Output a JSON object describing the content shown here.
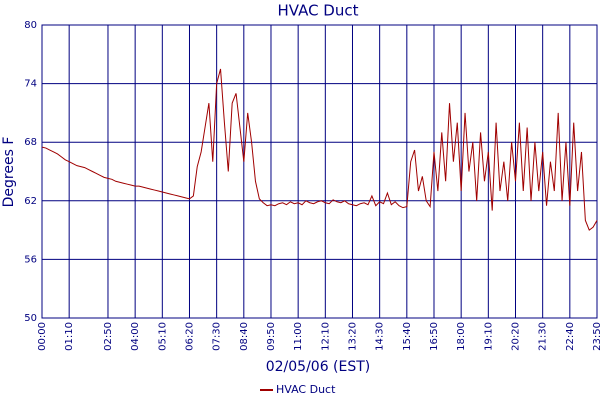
{
  "chart_data": {
    "type": "line",
    "title": "HVAC Duct",
    "xlabel": "02/05/06 (EST)",
    "ylabel": "Degrees F",
    "x": [
      "00:00",
      "00:10",
      "00:20",
      "00:30",
      "00:40",
      "00:50",
      "01:00",
      "01:10",
      "01:20",
      "01:30",
      "01:40",
      "01:50",
      "02:00",
      "02:10",
      "02:20",
      "02:30",
      "02:40",
      "02:50",
      "03:00",
      "03:10",
      "03:20",
      "03:30",
      "03:40",
      "03:50",
      "04:00",
      "04:10",
      "04:20",
      "04:30",
      "04:40",
      "04:50",
      "05:00",
      "05:10",
      "05:20",
      "05:30",
      "05:40",
      "05:50",
      "06:00",
      "06:10",
      "06:20",
      "06:30",
      "06:40",
      "06:50",
      "07:00",
      "07:10",
      "07:20",
      "07:30",
      "07:40",
      "07:50",
      "08:00",
      "08:10",
      "08:20",
      "08:30",
      "08:40",
      "08:50",
      "09:00",
      "09:10",
      "09:20",
      "09:30",
      "09:40",
      "09:50",
      "10:00",
      "10:10",
      "10:20",
      "10:30",
      "10:40",
      "10:50",
      "11:00",
      "11:10",
      "11:20",
      "11:30",
      "11:40",
      "11:50",
      "12:00",
      "12:10",
      "12:20",
      "12:30",
      "12:40",
      "12:50",
      "13:00",
      "13:10",
      "13:20",
      "13:30",
      "13:40",
      "13:50",
      "14:00",
      "14:10",
      "14:20",
      "14:30",
      "14:40",
      "14:50",
      "15:00",
      "15:10",
      "15:20",
      "15:30",
      "15:40",
      "15:50",
      "16:00",
      "16:10",
      "16:20",
      "16:30",
      "16:40",
      "16:50",
      "17:00",
      "17:10",
      "17:20",
      "17:30",
      "17:40",
      "17:50",
      "18:00",
      "18:10",
      "18:20",
      "18:30",
      "18:40",
      "18:50",
      "19:00",
      "19:10",
      "19:20",
      "19:30",
      "19:40",
      "19:50",
      "20:00",
      "20:10",
      "20:20",
      "20:30",
      "20:40",
      "20:50",
      "21:00",
      "21:10",
      "21:20",
      "21:30",
      "21:40",
      "21:50",
      "22:00",
      "22:10",
      "22:20",
      "22:30",
      "22:40",
      "22:50",
      "23:00",
      "23:10",
      "23:20",
      "23:30",
      "23:40",
      "23:50"
    ],
    "series": [
      {
        "name": "HVAC Duct",
        "color": "#a00000",
        "values": [
          67.5,
          67.4,
          67.2,
          67,
          66.8,
          66.5,
          66.2,
          66,
          65.8,
          65.6,
          65.5,
          65.4,
          65.2,
          65,
          64.8,
          64.6,
          64.4,
          64.3,
          64.2,
          64,
          63.9,
          63.8,
          63.7,
          63.6,
          63.5,
          63.5,
          63.4,
          63.3,
          63.2,
          63.1,
          63,
          62.9,
          62.8,
          62.7,
          62.6,
          62.5,
          62.4,
          62.3,
          62.2,
          62.5,
          65.5,
          67,
          69.5,
          72,
          66,
          74,
          75.5,
          70,
          65,
          72,
          73,
          69.5,
          66,
          71,
          68,
          64,
          62.2,
          61.8,
          61.5,
          61.6,
          61.5,
          61.7,
          61.8,
          61.6,
          61.9,
          61.7,
          61.8,
          61.6,
          62,
          61.8,
          61.7,
          61.9,
          62,
          61.8,
          61.7,
          62.1,
          61.9,
          61.8,
          62,
          61.7,
          61.6,
          61.5,
          61.7,
          61.8,
          61.6,
          62.5,
          61.5,
          61.9,
          61.7,
          62.8,
          61.6,
          61.9,
          61.5,
          61.3,
          61.4,
          66,
          67.2,
          63,
          64.5,
          62,
          61.4,
          67,
          63,
          69,
          64,
          72,
          66,
          70,
          63,
          71,
          65,
          68,
          62,
          69,
          64,
          67,
          61,
          70,
          63,
          66,
          62,
          68,
          64,
          70,
          63,
          69.5,
          62,
          68,
          63,
          67,
          61.5,
          66,
          63,
          71,
          62,
          68,
          61.5,
          70,
          63,
          67,
          60,
          59,
          59.3,
          60
        ]
      }
    ],
    "xticks": [
      "00:00",
      "01:10",
      "02:50",
      "04:00",
      "05:10",
      "06:20",
      "07:30",
      "08:40",
      "09:50",
      "11:00",
      "12:10",
      "13:20",
      "14:30",
      "15:40",
      "16:50",
      "18:00",
      "19:10",
      "20:20",
      "21:30",
      "22:40",
      "23:50"
    ],
    "ylim": [
      50,
      80
    ],
    "yticks": [
      50,
      56,
      62,
      68,
      74,
      80
    ],
    "grid": true,
    "legend": "bottom"
  }
}
